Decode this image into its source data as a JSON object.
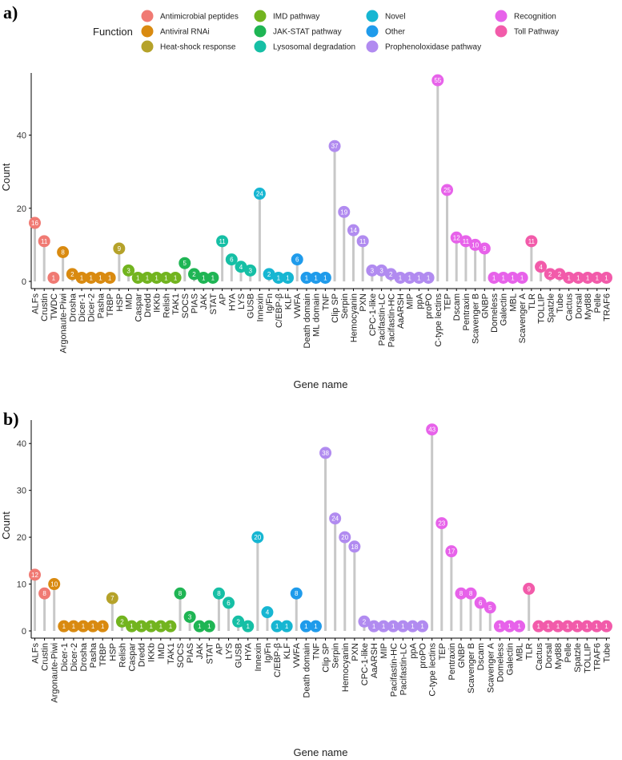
{
  "legend": {
    "title": "Function",
    "items": [
      {
        "name": "Antimicrobial peptides",
        "color": "#F07A73"
      },
      {
        "name": "Antiviral RNAi",
        "color": "#D98A10"
      },
      {
        "name": "Heat-shock response",
        "color": "#B5A22A"
      },
      {
        "name": "IMD pathway",
        "color": "#72B41F"
      },
      {
        "name": "JAK-STAT pathway",
        "color": "#1FB554"
      },
      {
        "name": "Lysosomal degradation",
        "color": "#16BFA5"
      },
      {
        "name": "Novel",
        "color": "#16B6D2"
      },
      {
        "name": "Other",
        "color": "#1F9BEB"
      },
      {
        "name": "Prophenoloxidase pathway",
        "color": "#B18BF0"
      },
      {
        "name": "Recognition",
        "color": "#E762EA"
      },
      {
        "name": "Toll Pathway",
        "color": "#F25BAA"
      }
    ]
  },
  "chart_data": [
    {
      "type": "lollipop",
      "panel_label": "a)",
      "xlabel": "Gene name",
      "ylabel": "Count",
      "ylim": [
        0,
        57
      ],
      "yticks": [
        0,
        20,
        40
      ],
      "points": [
        {
          "gene": "ALFs",
          "value": 16,
          "group": "Antimicrobial peptides"
        },
        {
          "gene": "Crustin",
          "value": 11,
          "group": "Antimicrobial peptides"
        },
        {
          "gene": "TWDC",
          "value": 1,
          "group": "Antimicrobial peptides"
        },
        {
          "gene": "Argonaute-Piwi",
          "value": 8,
          "group": "Antiviral RNAi"
        },
        {
          "gene": "Drosha",
          "value": 2,
          "group": "Antiviral RNAi"
        },
        {
          "gene": "Dicer-1",
          "value": 1,
          "group": "Antiviral RNAi"
        },
        {
          "gene": "Dicer-2",
          "value": 1,
          "group": "Antiviral RNAi"
        },
        {
          "gene": "Pasha",
          "value": 1,
          "group": "Antiviral RNAi"
        },
        {
          "gene": "TRBP",
          "value": 1,
          "group": "Antiviral RNAi"
        },
        {
          "gene": "HSP",
          "value": 9,
          "group": "Heat-shock response"
        },
        {
          "gene": "IMD",
          "value": 3,
          "group": "IMD pathway"
        },
        {
          "gene": "Caspar",
          "value": 1,
          "group": "IMD pathway"
        },
        {
          "gene": "Dredd",
          "value": 1,
          "group": "IMD pathway"
        },
        {
          "gene": "IKKb",
          "value": 1,
          "group": "IMD pathway"
        },
        {
          "gene": "Relish",
          "value": 1,
          "group": "IMD pathway"
        },
        {
          "gene": "TAK1",
          "value": 1,
          "group": "IMD pathway"
        },
        {
          "gene": "SOCS",
          "value": 5,
          "group": "JAK-STAT pathway"
        },
        {
          "gene": "PIAS",
          "value": 2,
          "group": "JAK-STAT pathway"
        },
        {
          "gene": "JAK",
          "value": 1,
          "group": "JAK-STAT pathway"
        },
        {
          "gene": "STAT",
          "value": 1,
          "group": "JAK-STAT pathway"
        },
        {
          "gene": "AP",
          "value": 11,
          "group": "Lysosomal degradation"
        },
        {
          "gene": "HYA",
          "value": 6,
          "group": "Lysosomal degradation"
        },
        {
          "gene": "LYS",
          "value": 4,
          "group": "Lysosomal degradation"
        },
        {
          "gene": "GUSB",
          "value": 3,
          "group": "Lysosomal degradation"
        },
        {
          "gene": "Innexin",
          "value": 24,
          "group": "Novel"
        },
        {
          "gene": "Ig/Fn",
          "value": 2,
          "group": "Novel"
        },
        {
          "gene": "C/EBP-β",
          "value": 1,
          "group": "Novel"
        },
        {
          "gene": "KLF",
          "value": 1,
          "group": "Novel"
        },
        {
          "gene": "VWFA",
          "value": 6,
          "group": "Other"
        },
        {
          "gene": "Death domain",
          "value": 1,
          "group": "Other"
        },
        {
          "gene": "ML domain",
          "value": 1,
          "group": "Other"
        },
        {
          "gene": "TNF",
          "value": 1,
          "group": "Other"
        },
        {
          "gene": "Clip SP",
          "value": 37,
          "group": "Prophenoloxidase pathway"
        },
        {
          "gene": "Serpin",
          "value": 19,
          "group": "Prophenoloxidase pathway"
        },
        {
          "gene": "Hemocyanin",
          "value": 14,
          "group": "Prophenoloxidase pathway"
        },
        {
          "gene": "PXN",
          "value": 11,
          "group": "Prophenoloxidase pathway"
        },
        {
          "gene": "CPC-1-like",
          "value": 3,
          "group": "Prophenoloxidase pathway"
        },
        {
          "gene": "Pacifastin-LC",
          "value": 3,
          "group": "Prophenoloxidase pathway"
        },
        {
          "gene": "Pacifastin-HC",
          "value": 2,
          "group": "Prophenoloxidase pathway"
        },
        {
          "gene": "AaARSH",
          "value": 1,
          "group": "Prophenoloxidase pathway"
        },
        {
          "gene": "MIP",
          "value": 1,
          "group": "Prophenoloxidase pathway"
        },
        {
          "gene": "ppA",
          "value": 1,
          "group": "Prophenoloxidase pathway"
        },
        {
          "gene": "proPO",
          "value": 1,
          "group": "Prophenoloxidase pathway"
        },
        {
          "gene": "C-type lectins",
          "value": 55,
          "group": "Recognition"
        },
        {
          "gene": "TEP",
          "value": 25,
          "group": "Recognition"
        },
        {
          "gene": "Dscam",
          "value": 12,
          "group": "Recognition"
        },
        {
          "gene": "Pentraxin",
          "value": 11,
          "group": "Recognition"
        },
        {
          "gene": "Scavenger B",
          "value": 10,
          "group": "Recognition"
        },
        {
          "gene": "GNBP",
          "value": 9,
          "group": "Recognition"
        },
        {
          "gene": "Domeless",
          "value": 1,
          "group": "Recognition"
        },
        {
          "gene": "Galectin",
          "value": 1,
          "group": "Recognition"
        },
        {
          "gene": "MBL",
          "value": 1,
          "group": "Recognition"
        },
        {
          "gene": "Scavenger A",
          "value": 1,
          "group": "Recognition"
        },
        {
          "gene": "TLR",
          "value": 11,
          "group": "Toll Pathway"
        },
        {
          "gene": "TOLLIP",
          "value": 4,
          "group": "Toll Pathway"
        },
        {
          "gene": "Spatzle",
          "value": 2,
          "group": "Toll Pathway"
        },
        {
          "gene": "Tube",
          "value": 2,
          "group": "Toll Pathway"
        },
        {
          "gene": "Cactus",
          "value": 1,
          "group": "Toll Pathway"
        },
        {
          "gene": "Dorsal",
          "value": 1,
          "group": "Toll Pathway"
        },
        {
          "gene": "Myd88",
          "value": 1,
          "group": "Toll Pathway"
        },
        {
          "gene": "Pelle",
          "value": 1,
          "group": "Toll Pathway"
        },
        {
          "gene": "TRAF6",
          "value": 1,
          "group": "Toll Pathway"
        }
      ]
    },
    {
      "type": "lollipop",
      "panel_label": "b)",
      "xlabel": "Gene name",
      "ylabel": "Count",
      "ylim": [
        0,
        45
      ],
      "yticks": [
        0,
        10,
        20,
        30,
        40
      ],
      "points": [
        {
          "gene": "ALFs",
          "value": 12,
          "group": "Antimicrobial peptides"
        },
        {
          "gene": "Crustin",
          "value": 8,
          "group": "Antimicrobial peptides"
        },
        {
          "gene": "Argonaute-Piwi",
          "value": 10,
          "group": "Antiviral RNAi"
        },
        {
          "gene": "Dicer-1",
          "value": 1,
          "group": "Antiviral RNAi"
        },
        {
          "gene": "Dicer-2",
          "value": 1,
          "group": "Antiviral RNAi"
        },
        {
          "gene": "Drosha",
          "value": 1,
          "group": "Antiviral RNAi"
        },
        {
          "gene": "Pasha",
          "value": 1,
          "group": "Antiviral RNAi"
        },
        {
          "gene": "TRBP",
          "value": 1,
          "group": "Antiviral RNAi"
        },
        {
          "gene": "HSP",
          "value": 7,
          "group": "Heat-shock response"
        },
        {
          "gene": "Relish",
          "value": 2,
          "group": "IMD pathway"
        },
        {
          "gene": "Caspar",
          "value": 1,
          "group": "IMD pathway"
        },
        {
          "gene": "Dredd",
          "value": 1,
          "group": "IMD pathway"
        },
        {
          "gene": "IKKb",
          "value": 1,
          "group": "IMD pathway"
        },
        {
          "gene": "IMD",
          "value": 1,
          "group": "IMD pathway"
        },
        {
          "gene": "TAK1",
          "value": 1,
          "group": "IMD pathway"
        },
        {
          "gene": "SOCS",
          "value": 8,
          "group": "JAK-STAT pathway"
        },
        {
          "gene": "PIAS",
          "value": 3,
          "group": "JAK-STAT pathway"
        },
        {
          "gene": "JAK",
          "value": 1,
          "group": "JAK-STAT pathway"
        },
        {
          "gene": "STAT",
          "value": 1,
          "group": "JAK-STAT pathway"
        },
        {
          "gene": "AP",
          "value": 8,
          "group": "Lysosomal degradation"
        },
        {
          "gene": "LYS",
          "value": 6,
          "group": "Lysosomal degradation"
        },
        {
          "gene": "GUSB",
          "value": 2,
          "group": "Lysosomal degradation"
        },
        {
          "gene": "HYA",
          "value": 1,
          "group": "Lysosomal degradation"
        },
        {
          "gene": "Innexin",
          "value": 20,
          "group": "Novel"
        },
        {
          "gene": "Ig/Fn",
          "value": 4,
          "group": "Novel"
        },
        {
          "gene": "C/EBP-β",
          "value": 1,
          "group": "Novel"
        },
        {
          "gene": "KLF",
          "value": 1,
          "group": "Novel"
        },
        {
          "gene": "VWFA",
          "value": 8,
          "group": "Other"
        },
        {
          "gene": "Death domain",
          "value": 1,
          "group": "Other"
        },
        {
          "gene": "TNF",
          "value": 1,
          "group": "Other"
        },
        {
          "gene": "Clip SP",
          "value": 38,
          "group": "Prophenoloxidase pathway"
        },
        {
          "gene": "Serpin",
          "value": 24,
          "group": "Prophenoloxidase pathway"
        },
        {
          "gene": "Hemocyanin",
          "value": 20,
          "group": "Prophenoloxidase pathway"
        },
        {
          "gene": "PXN",
          "value": 18,
          "group": "Prophenoloxidase pathway"
        },
        {
          "gene": "CPC-1-like",
          "value": 2,
          "group": "Prophenoloxidase pathway"
        },
        {
          "gene": "AaARSH",
          "value": 1,
          "group": "Prophenoloxidase pathway"
        },
        {
          "gene": "MIP",
          "value": 1,
          "group": "Prophenoloxidase pathway"
        },
        {
          "gene": "Pacifastin-HC",
          "value": 1,
          "group": "Prophenoloxidase pathway"
        },
        {
          "gene": "Pacifastin-LC",
          "value": 1,
          "group": "Prophenoloxidase pathway"
        },
        {
          "gene": "ppA",
          "value": 1,
          "group": "Prophenoloxidase pathway"
        },
        {
          "gene": "proPO",
          "value": 1,
          "group": "Prophenoloxidase pathway"
        },
        {
          "gene": "C-type lectins",
          "value": 43,
          "group": "Recognition"
        },
        {
          "gene": "TEP",
          "value": 23,
          "group": "Recognition"
        },
        {
          "gene": "Pentraxin",
          "value": 17,
          "group": "Recognition"
        },
        {
          "gene": "GNBP",
          "value": 8,
          "group": "Recognition"
        },
        {
          "gene": "Scavenger B",
          "value": 8,
          "group": "Recognition"
        },
        {
          "gene": "Dscam",
          "value": 6,
          "group": "Recognition"
        },
        {
          "gene": "Scavenger A",
          "value": 5,
          "group": "Recognition"
        },
        {
          "gene": "Domeless",
          "value": 1,
          "group": "Recognition"
        },
        {
          "gene": "Galectin",
          "value": 1,
          "group": "Recognition"
        },
        {
          "gene": "MBL",
          "value": 1,
          "group": "Recognition"
        },
        {
          "gene": "TLR",
          "value": 9,
          "group": "Toll Pathway"
        },
        {
          "gene": "Cactus",
          "value": 1,
          "group": "Toll Pathway"
        },
        {
          "gene": "Dorsal",
          "value": 1,
          "group": "Toll Pathway"
        },
        {
          "gene": "Myd88",
          "value": 1,
          "group": "Toll Pathway"
        },
        {
          "gene": "Pelle",
          "value": 1,
          "group": "Toll Pathway"
        },
        {
          "gene": "Spatzle",
          "value": 1,
          "group": "Toll Pathway"
        },
        {
          "gene": "TOLLIP",
          "value": 1,
          "group": "Toll Pathway"
        },
        {
          "gene": "TRAF6",
          "value": 1,
          "group": "Toll Pathway"
        },
        {
          "gene": "Tube",
          "value": 1,
          "group": "Toll Pathway"
        }
      ]
    }
  ]
}
